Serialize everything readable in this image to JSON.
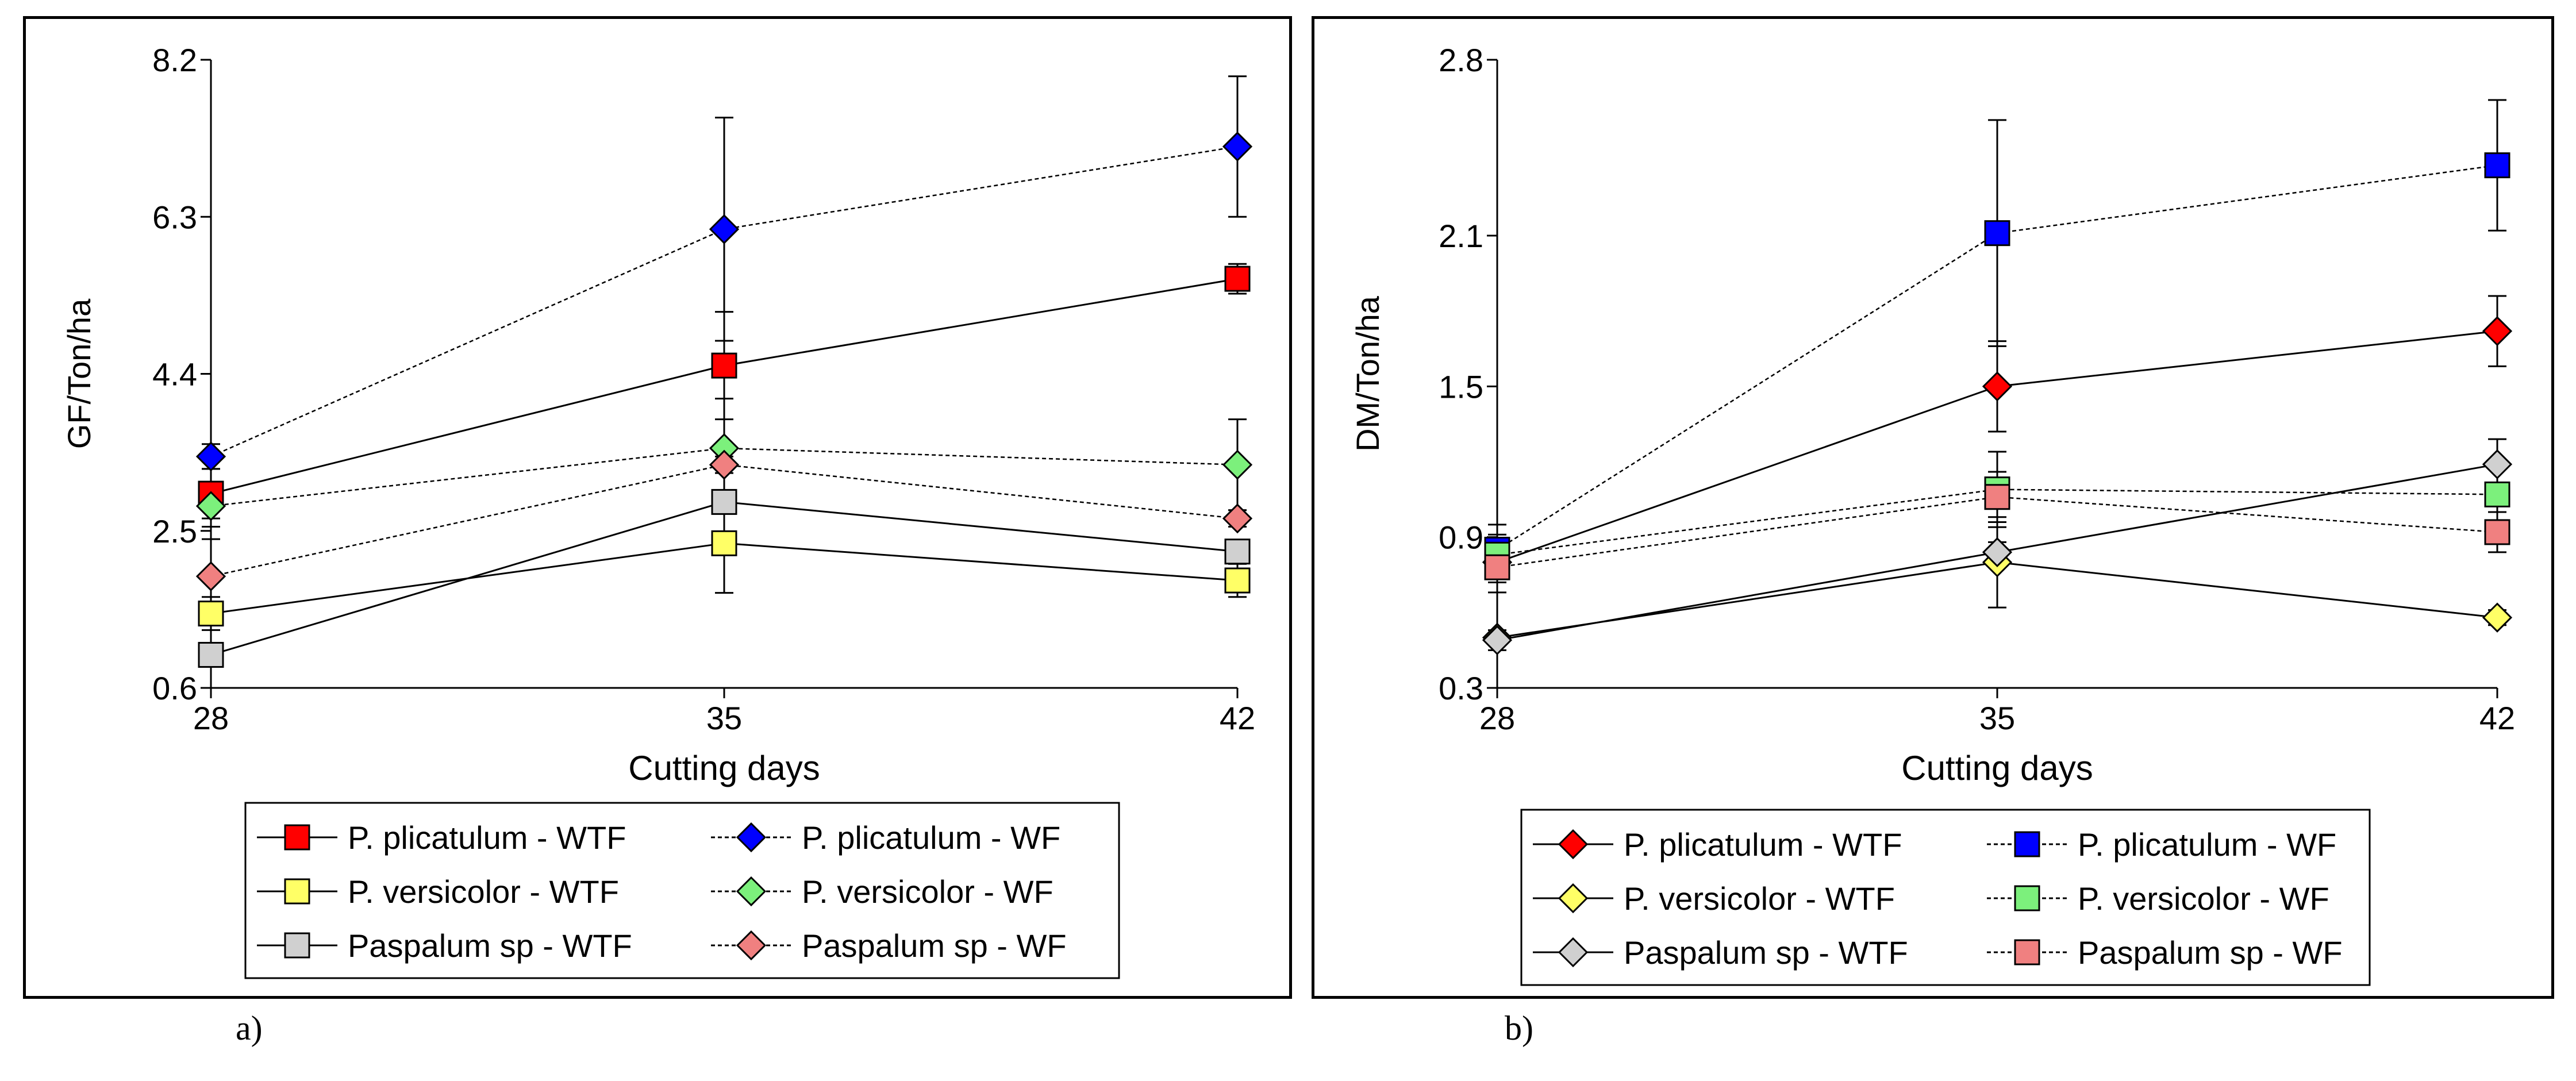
{
  "panel_labels": {
    "a": "a)",
    "b": "b)"
  },
  "colors": {
    "red": "#ff0000",
    "blue": "#0000ff",
    "yellow": "#ffff66",
    "green": "#7cf07c",
    "gray": "#d0d0d0",
    "pink": "#f08080"
  },
  "chart_data": [
    {
      "id": "a",
      "type": "line",
      "ylabel": "GF/Ton/ha",
      "xlabel": "Cutting days",
      "x": [
        28,
        35,
        42
      ],
      "ylim": [
        0.6,
        8.2
      ],
      "yticks": [
        "0.6",
        "2.5",
        "4.4",
        "6.3",
        "8.2"
      ],
      "xticks": [
        "28",
        "35",
        "42"
      ],
      "grid": false,
      "legend_position": "bottom",
      "series": [
        {
          "name": "P. plicatulum - WTF",
          "marker": "square",
          "line": "solid",
          "color": "#ff0000",
          "values": [
            2.95,
            4.5,
            5.55
          ],
          "errors": [
            0.3,
            0.65,
            0.18
          ]
        },
        {
          "name": "P. plicatulum - WF",
          "marker": "diamond",
          "line": "dotted",
          "color": "#0000ff",
          "values": [
            3.4,
            6.15,
            7.15
          ],
          "errors": [
            0.15,
            1.35,
            0.85
          ]
        },
        {
          "name": "P. versicolor - WTF",
          "marker": "square",
          "line": "solid",
          "color": "#ffff66",
          "values": [
            1.5,
            2.35,
            1.9
          ],
          "errors": [
            0.2,
            0.6,
            0.2
          ]
        },
        {
          "name": "P. versicolor - WF",
          "marker": "diamond",
          "line": "dotted",
          "color": "#7cf07c",
          "values": [
            2.8,
            3.5,
            3.3
          ],
          "errors": [
            0.25,
            0.6,
            0.55
          ]
        },
        {
          "name": "Paspalum sp - WTF",
          "marker": "square",
          "line": "solid",
          "color": "#d0d0d0",
          "values": [
            1.0,
            2.85,
            2.25
          ],
          "errors": [
            0,
            0.45,
            0.1
          ]
        },
        {
          "name": "Paspalum sp - WF",
          "marker": "diamond",
          "line": "dotted",
          "color": "#f08080",
          "values": [
            1.95,
            3.3,
            2.65
          ],
          "errors": [
            0.45,
            0.1,
            0.1
          ]
        }
      ]
    },
    {
      "id": "b",
      "type": "line",
      "ylabel": "DM/Ton/ha",
      "xlabel": "Cutting days",
      "x": [
        28,
        35,
        42
      ],
      "ylim": [
        0.3,
        2.8
      ],
      "yticks": [
        "0.3",
        "0.9",
        "1.5",
        "2.1",
        "2.8"
      ],
      "xticks": [
        "28",
        "35",
        "42"
      ],
      "grid": false,
      "legend_position": "bottom",
      "series": [
        {
          "name": "P. plicatulum - WTF",
          "marker": "diamond",
          "line": "solid",
          "color": "#ff0000",
          "values": [
            0.8,
            1.5,
            1.72
          ],
          "errors": [
            0.08,
            0.18,
            0.14
          ]
        },
        {
          "name": "P. plicatulum - WF",
          "marker": "square",
          "line": "dotted",
          "color": "#0000ff",
          "values": [
            0.85,
            2.11,
            2.38
          ],
          "errors": [
            0.1,
            0.45,
            0.26
          ]
        },
        {
          "name": "P. versicolor - WTF",
          "marker": "diamond",
          "line": "solid",
          "color": "#ffff66",
          "values": [
            0.5,
            0.8,
            0.58
          ],
          "errors": [
            0.03,
            0.18,
            0.03
          ]
        },
        {
          "name": "P. versicolor - WF",
          "marker": "square",
          "line": "dotted",
          "color": "#7cf07c",
          "values": [
            0.83,
            1.09,
            1.07
          ],
          "errors": [
            0.08,
            0.15,
            0.12
          ]
        },
        {
          "name": "Paspalum sp - WTF",
          "marker": "diamond",
          "line": "solid",
          "color": "#d0d0d0",
          "values": [
            0.49,
            0.84,
            1.19
          ],
          "errors": [
            0.04,
            0.04,
            0.1
          ]
        },
        {
          "name": "Paspalum sp - WF",
          "marker": "square",
          "line": "dotted",
          "color": "#f08080",
          "values": [
            0.78,
            1.06,
            0.92
          ],
          "errors": [
            0.1,
            0.1,
            0.08
          ]
        }
      ]
    }
  ]
}
